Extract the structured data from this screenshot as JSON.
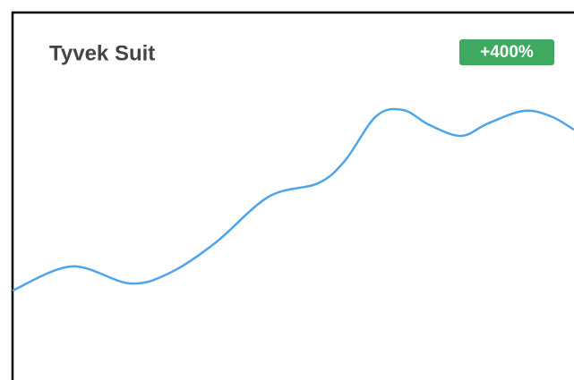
{
  "chart_data": {
    "type": "line",
    "title": "Tyvek Suit",
    "badge": "+400%",
    "badge_color": "#3faa5f",
    "color": "#4ea5e9",
    "x": [
      0,
      66,
      131,
      176,
      226,
      286,
      341,
      371,
      406,
      436,
      466,
      501,
      531,
      571,
      601,
      627
    ],
    "values": [
      75,
      102,
      83,
      95,
      128,
      180,
      195,
      220,
      270,
      277,
      260,
      248,
      262,
      276,
      270,
      255
    ],
    "xlim": [
      0,
      627
    ],
    "ylim": [
      0,
      300
    ]
  }
}
